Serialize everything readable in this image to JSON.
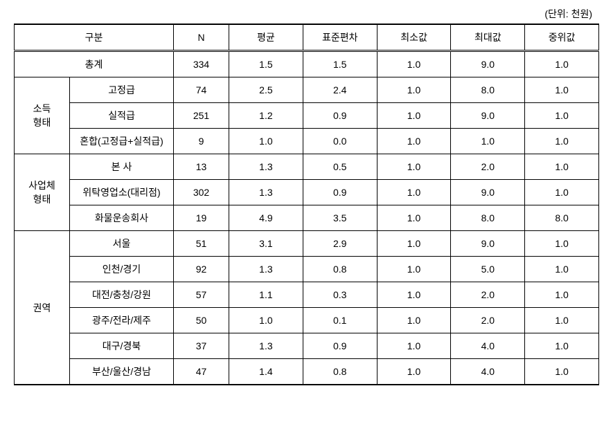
{
  "unit_label": "(단위: 천원)",
  "columns": {
    "category": "구분",
    "n": "N",
    "mean": "평균",
    "std": "표준편차",
    "min": "최소값",
    "max": "최대값",
    "median": "중위값"
  },
  "total": {
    "label": "총계",
    "n": "334",
    "mean": "1.5",
    "std": "1.5",
    "min": "1.0",
    "max": "9.0",
    "median": "1.0"
  },
  "groups": [
    {
      "label": "소득\n형태",
      "rows": [
        {
          "label": "고정급",
          "n": "74",
          "mean": "2.5",
          "std": "2.4",
          "min": "1.0",
          "max": "8.0",
          "median": "1.0"
        },
        {
          "label": "실적급",
          "n": "251",
          "mean": "1.2",
          "std": "0.9",
          "min": "1.0",
          "max": "9.0",
          "median": "1.0"
        },
        {
          "label": "혼합(고정급+실적급)",
          "n": "9",
          "mean": "1.0",
          "std": "0.0",
          "min": "1.0",
          "max": "1.0",
          "median": "1.0"
        }
      ]
    },
    {
      "label": "사업체\n형태",
      "rows": [
        {
          "label": "본 사",
          "n": "13",
          "mean": "1.3",
          "std": "0.5",
          "min": "1.0",
          "max": "2.0",
          "median": "1.0"
        },
        {
          "label": "위탁영업소(대리점)",
          "n": "302",
          "mean": "1.3",
          "std": "0.9",
          "min": "1.0",
          "max": "9.0",
          "median": "1.0"
        },
        {
          "label": "화물운송회사",
          "n": "19",
          "mean": "4.9",
          "std": "3.5",
          "min": "1.0",
          "max": "8.0",
          "median": "8.0"
        }
      ]
    },
    {
      "label": "권역",
      "rows": [
        {
          "label": "서울",
          "n": "51",
          "mean": "3.1",
          "std": "2.9",
          "min": "1.0",
          "max": "9.0",
          "median": "1.0"
        },
        {
          "label": "인천/경기",
          "n": "92",
          "mean": "1.3",
          "std": "0.8",
          "min": "1.0",
          "max": "5.0",
          "median": "1.0"
        },
        {
          "label": "대전/충청/강원",
          "n": "57",
          "mean": "1.1",
          "std": "0.3",
          "min": "1.0",
          "max": "2.0",
          "median": "1.0"
        },
        {
          "label": "광주/전라/제주",
          "n": "50",
          "mean": "1.0",
          "std": "0.1",
          "min": "1.0",
          "max": "2.0",
          "median": "1.0"
        },
        {
          "label": "대구/경북",
          "n": "37",
          "mean": "1.3",
          "std": "0.9",
          "min": "1.0",
          "max": "4.0",
          "median": "1.0"
        },
        {
          "label": "부산/울산/경남",
          "n": "47",
          "mean": "1.4",
          "std": "0.8",
          "min": "1.0",
          "max": "4.0",
          "median": "1.0"
        }
      ]
    }
  ]
}
